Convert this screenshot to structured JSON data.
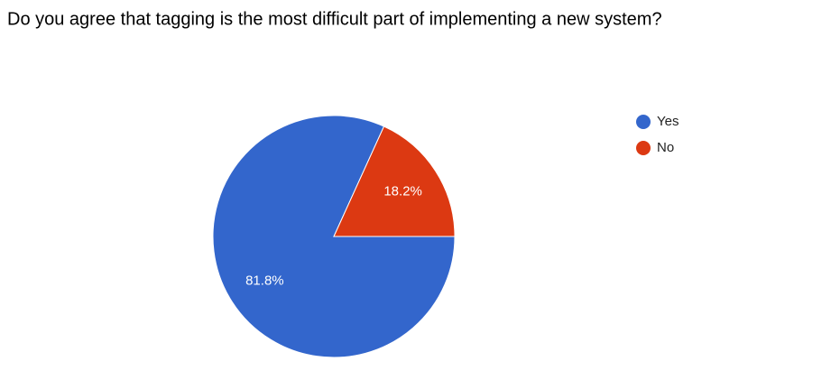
{
  "chart_data": {
    "type": "pie",
    "title": "Do you agree that tagging is the most difficult part of implementing a new system?",
    "categories": [
      "Yes",
      "No"
    ],
    "values": [
      81.8,
      18.2
    ],
    "value_labels": [
      "81.8%",
      "18.2%"
    ],
    "colors": [
      "#3366cc",
      "#dc3912"
    ],
    "legend": "right"
  }
}
